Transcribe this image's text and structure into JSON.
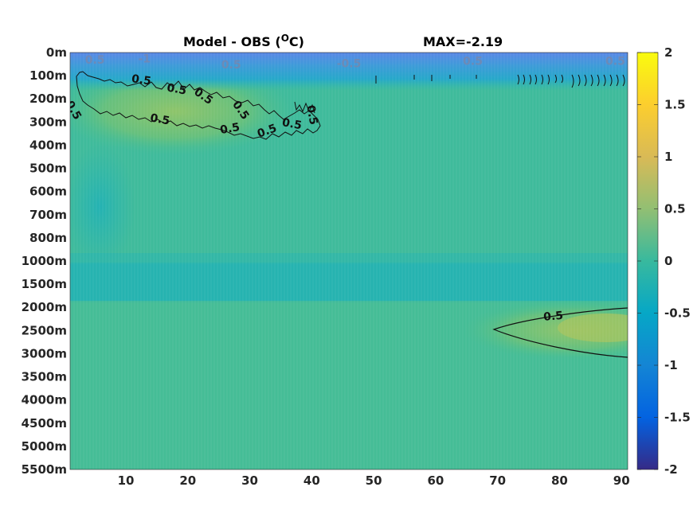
{
  "chart_data": {
    "type": "heatmap",
    "title": "Model - OBS (",
    "title_unit": "O",
    "title_unit_suffix": "C)",
    "max_label": "MAX=-2.19",
    "x": {
      "ticks": [
        10,
        20,
        30,
        40,
        50,
        60,
        70,
        80,
        90
      ],
      "range": [
        1,
        91
      ]
    },
    "y": {
      "tick_labels": [
        "0m",
        "100m",
        "200m",
        "300m",
        "400m",
        "500m",
        "600m",
        "700m",
        "800m",
        "1000m",
        "1500m",
        "2000m",
        "2500m",
        "3000m",
        "3500m",
        "4000m",
        "4500m",
        "5000m",
        "5500m"
      ],
      "reversed": true
    },
    "colorbar": {
      "range": [
        -2,
        2
      ],
      "ticks": [
        2,
        1.5,
        1,
        0.5,
        0,
        -0.5,
        -1,
        -1.5,
        -2
      ],
      "colormap": "parula",
      "colors": [
        "#352a87",
        "#0363e1",
        "#1485d4",
        "#06a7c6",
        "#38b99e",
        "#92bf73",
        "#d9ba56",
        "#fcce2e",
        "#f9fb0e"
      ]
    },
    "contour_level": 0.5,
    "contour_labels": [
      {
        "text": "0.5",
        "x": 18.2,
        "depth_level": 1.6
      },
      {
        "text": "0.5",
        "x": 12.5,
        "depth_level": 1.2
      },
      {
        "text": "0.5",
        "x": 1.5,
        "depth_level": 2.5
      },
      {
        "text": "0.5",
        "x": 15.5,
        "depth_level": 2.9
      },
      {
        "text": "0.5",
        "x": 22.5,
        "depth_level": 1.9
      },
      {
        "text": "0.5",
        "x": 28.5,
        "depth_level": 2.5
      },
      {
        "text": "0.5",
        "x": 26.8,
        "depth_level": 3.3
      },
      {
        "text": "0.5",
        "x": 32.8,
        "depth_level": 3.4
      },
      {
        "text": "0.5",
        "x": 36.8,
        "depth_level": 3.1
      },
      {
        "text": "0.5",
        "x": 40.0,
        "depth_level": 2.7
      },
      {
        "text": "0.5",
        "x": 79.0,
        "depth_level": 11.4
      }
    ],
    "faint_labels": [
      {
        "text": "0.5",
        "x": 5.0,
        "depth_level": 0.35
      },
      {
        "text": "-1",
        "x": 13.0,
        "depth_level": 0.3
      },
      {
        "text": "0.5",
        "x": 27.0,
        "depth_level": 0.55
      },
      {
        "text": "-0.5",
        "x": 46.0,
        "depth_level": 0.5
      },
      {
        "text": "0.5",
        "x": 66.0,
        "depth_level": 0.4
      },
      {
        "text": "0.5",
        "x": 89.0,
        "depth_level": 0.4
      }
    ]
  }
}
